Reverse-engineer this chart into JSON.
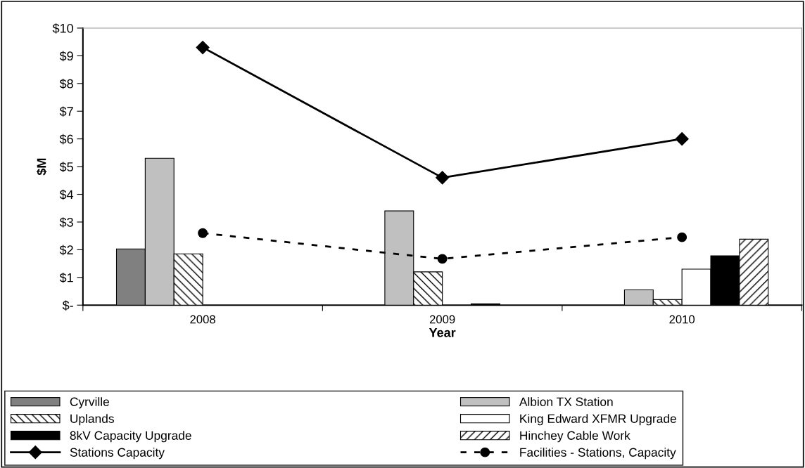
{
  "chart_data": {
    "type": "bar",
    "xlabel": "Year",
    "ylabel": "$M",
    "categories": [
      "2008",
      "2009",
      "2010"
    ],
    "series": [
      {
        "name": "Cyrville",
        "color": "#808080",
        "values": [
          2.03,
          null,
          null
        ]
      },
      {
        "name": "Albion TX Station",
        "color": "#c0c0c0",
        "values": [
          5.3,
          3.4,
          0.55
        ]
      },
      {
        "name": "Uplands",
        "color": "#000000",
        "values": [
          1.85,
          1.2,
          0.2
        ]
      },
      {
        "name": "King Edward XFMR Upgrade",
        "color": "#ffffff",
        "values": [
          null,
          null,
          1.3
        ]
      },
      {
        "name": "8kV Capacity Upgrade",
        "color": "#000000",
        "values": [
          null,
          0.05,
          1.78
        ]
      },
      {
        "name": "Hinchey Cable Work",
        "color": "#000000",
        "values": [
          null,
          null,
          2.38
        ]
      },
      {
        "name": "Stations Capacity",
        "color": "#000000",
        "type": "line",
        "marker": "diamond",
        "line_style": "solid",
        "values": [
          9.3,
          4.6,
          6.0
        ]
      },
      {
        "name": "Facilities - Stations, Capacity",
        "color": "#000000",
        "type": "line",
        "marker": "circle",
        "line_style": "dashed",
        "values": [
          2.6,
          1.67,
          2.45
        ]
      }
    ],
    "ylim": [
      0,
      10
    ],
    "yticks": [
      {
        "value": 0,
        "label": "$-"
      },
      {
        "value": 1,
        "label": "$1"
      },
      {
        "value": 2,
        "label": "$2"
      },
      {
        "value": 3,
        "label": "$3"
      },
      {
        "value": 4,
        "label": "$4"
      },
      {
        "value": 5,
        "label": "$5"
      },
      {
        "value": 6,
        "label": "$6"
      },
      {
        "value": 7,
        "label": "$7"
      },
      {
        "value": 8,
        "label": "$8"
      },
      {
        "value": 9,
        "label": "$9"
      },
      {
        "value": 10,
        "label": "$10"
      }
    ],
    "legend": "bottom",
    "grid": false
  }
}
